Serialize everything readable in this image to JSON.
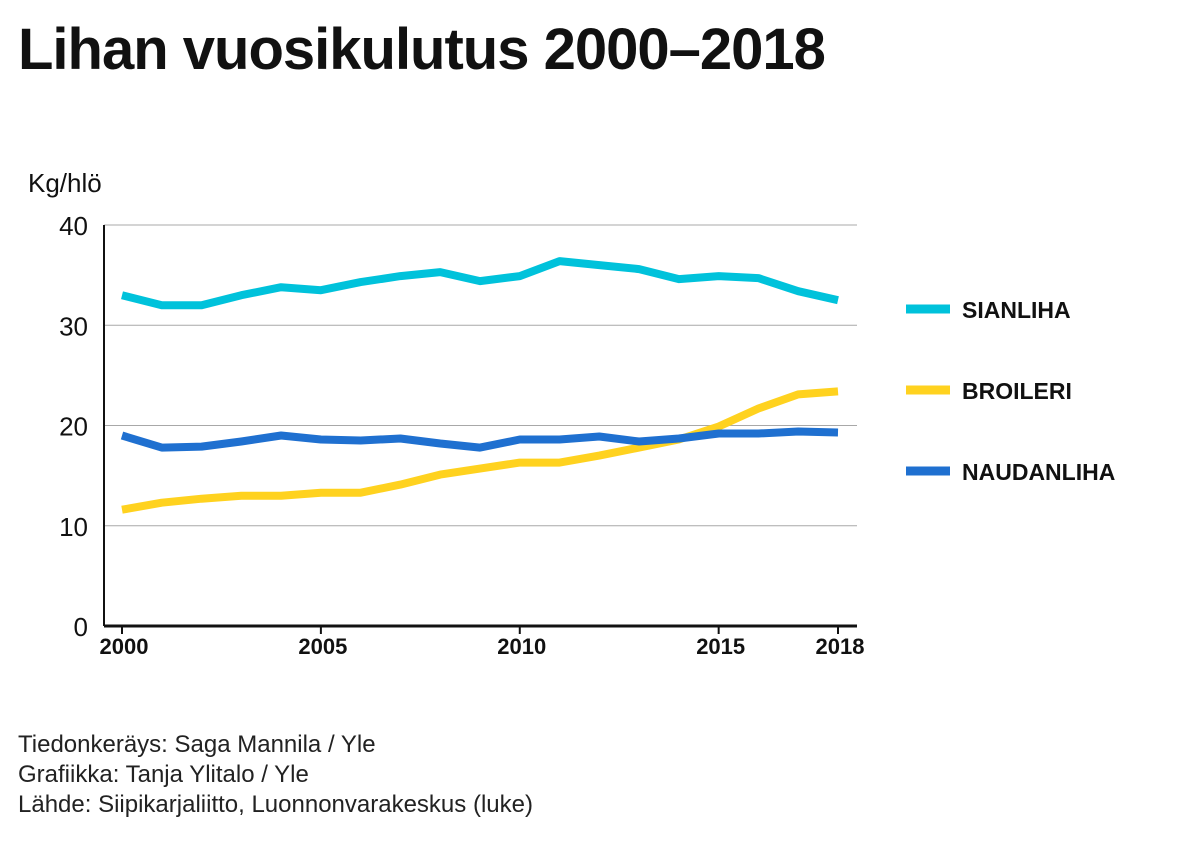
{
  "title": "Lihan vuosikulutus 2000–2018",
  "chart_data": {
    "type": "line",
    "ylabel": "Kg/hlö",
    "ylim": [
      0,
      40
    ],
    "yticks": [
      0,
      10,
      20,
      30,
      40
    ],
    "xlim": [
      2000,
      2018
    ],
    "xticks": [
      2000,
      2005,
      2010,
      2015,
      2018
    ],
    "x": [
      2000,
      2001,
      2002,
      2003,
      2004,
      2005,
      2006,
      2007,
      2008,
      2009,
      2010,
      2011,
      2012,
      2013,
      2014,
      2015,
      2016,
      2017,
      2018
    ],
    "grid": true,
    "legend": "right",
    "series": [
      {
        "name": "SIANLIHA",
        "color": "#00c2db",
        "values": [
          33.0,
          32.0,
          32.0,
          33.0,
          33.8,
          33.5,
          34.3,
          34.9,
          35.3,
          34.4,
          34.9,
          36.4,
          36.0,
          35.6,
          34.6,
          34.9,
          34.7,
          33.4,
          32.5
        ]
      },
      {
        "name": "BROILERI",
        "color": "#ffd21f",
        "values": [
          11.6,
          12.3,
          12.7,
          13.0,
          13.0,
          13.3,
          13.3,
          14.1,
          15.1,
          15.7,
          16.3,
          16.3,
          17.0,
          17.8,
          18.6,
          19.9,
          21.7,
          23.1,
          23.4
        ]
      },
      {
        "name": "NAUDANLIHA",
        "color": "#1f70d0",
        "values": [
          19.0,
          17.8,
          17.9,
          18.4,
          19.0,
          18.6,
          18.5,
          18.7,
          18.2,
          17.8,
          18.6,
          18.6,
          18.9,
          18.4,
          18.7,
          19.2,
          19.2,
          19.4,
          19.3
        ]
      }
    ]
  },
  "credits": [
    "Tiedonkeräys: Saga Mannila / Yle",
    "Grafiikka: Tanja Ylitalo / Yle",
    "Lähde: Siipikarjaliitto, Luonnonvarakeskus (luke)"
  ]
}
